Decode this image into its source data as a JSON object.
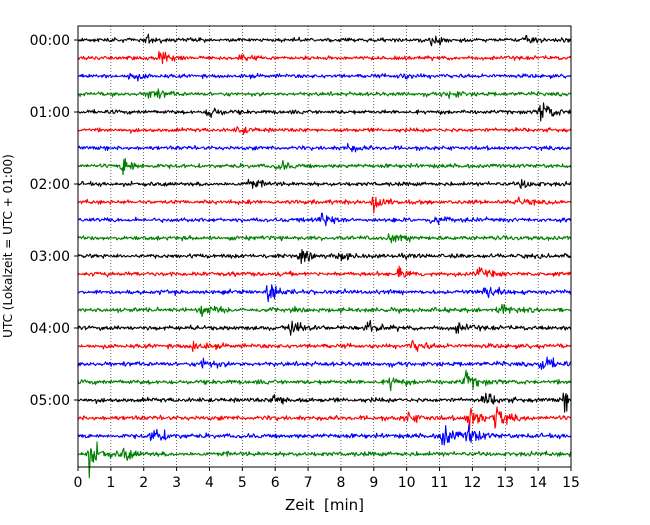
{
  "chart_data": {
    "type": "line",
    "subtype": "helicorder",
    "xlabel": "Zeit  [min]",
    "ylabel": "UTC (Lokalzeit = UTC + 01:00)",
    "xlim": [
      0,
      15
    ],
    "x_ticks": [
      0,
      1,
      2,
      3,
      4,
      5,
      6,
      7,
      8,
      9,
      10,
      11,
      12,
      13,
      14,
      15
    ],
    "x_tick_labels": [
      "0",
      "1",
      "2",
      "3",
      "4",
      "5",
      "6",
      "7",
      "8",
      "9",
      "10",
      "11",
      "12",
      "13",
      "14",
      "15"
    ],
    "y_tick_labels": [
      "00:00",
      "01:00",
      "02:00",
      "03:00",
      "04:00",
      "05:00"
    ],
    "minutes_per_line": 15,
    "lines_per_hour": 4,
    "grid": "vertical-dotted",
    "color_cycle": [
      "#000000",
      "#ff0000",
      "#0000ff",
      "#008000"
    ],
    "traces": [
      {
        "start": "00:00",
        "events": [
          {
            "t": 2.1,
            "amp": 0.35
          },
          {
            "t": 10.8,
            "amp": 0.45
          },
          {
            "t": 13.6,
            "amp": 0.3
          }
        ]
      },
      {
        "start": "00:15",
        "events": [
          {
            "t": 2.5,
            "amp": 0.45
          },
          {
            "t": 4.9,
            "amp": 0.35
          }
        ]
      },
      {
        "start": "00:30",
        "events": [
          {
            "t": 1.6,
            "amp": 0.35
          },
          {
            "t": 9.8,
            "amp": 0.25
          }
        ]
      },
      {
        "start": "00:45",
        "events": [
          {
            "t": 2.2,
            "amp": 0.55
          },
          {
            "t": 11.3,
            "amp": 0.3
          }
        ]
      },
      {
        "start": "01:00",
        "events": [
          {
            "t": 4.0,
            "amp": 0.5
          },
          {
            "t": 14.1,
            "amp": 0.9
          }
        ]
      },
      {
        "start": "01:15",
        "events": [
          {
            "t": 4.9,
            "amp": 0.3
          }
        ]
      },
      {
        "start": "01:30",
        "events": [
          {
            "t": 8.2,
            "amp": 0.3
          }
        ]
      },
      {
        "start": "01:45",
        "events": [
          {
            "t": 1.4,
            "amp": 0.8
          },
          {
            "t": 6.1,
            "amp": 0.35
          }
        ]
      },
      {
        "start": "02:00",
        "events": [
          {
            "t": 5.2,
            "amp": 0.4
          },
          {
            "t": 13.5,
            "amp": 0.35
          }
        ]
      },
      {
        "start": "02:15",
        "events": [
          {
            "t": 8.95,
            "amp": 1.0
          },
          {
            "t": 13.3,
            "amp": 0.35
          }
        ]
      },
      {
        "start": "02:30",
        "events": [
          {
            "t": 7.4,
            "amp": 0.55
          },
          {
            "t": 10.8,
            "amp": 0.35
          }
        ]
      },
      {
        "start": "02:45",
        "events": [
          {
            "t": 9.5,
            "amp": 0.35
          }
        ]
      },
      {
        "start": "03:00",
        "events": [
          {
            "t": 6.8,
            "amp": 0.35
          },
          {
            "t": 8.0,
            "amp": 0.35
          }
        ]
      },
      {
        "start": "03:15",
        "events": [
          {
            "t": 9.8,
            "amp": 0.4
          },
          {
            "t": 12.2,
            "amp": 0.4
          }
        ]
      },
      {
        "start": "03:30",
        "events": [
          {
            "t": 5.8,
            "amp": 0.6
          },
          {
            "t": 12.4,
            "amp": 0.55
          }
        ]
      },
      {
        "start": "03:45",
        "events": [
          {
            "t": 3.8,
            "amp": 0.45
          },
          {
            "t": 12.8,
            "amp": 0.5
          }
        ]
      },
      {
        "start": "04:00",
        "events": [
          {
            "t": 6.5,
            "amp": 0.7
          },
          {
            "t": 8.8,
            "amp": 0.6
          },
          {
            "t": 11.5,
            "amp": 0.4
          }
        ]
      },
      {
        "start": "04:15",
        "events": [
          {
            "t": 3.5,
            "amp": 0.4
          },
          {
            "t": 10.2,
            "amp": 0.4
          }
        ]
      },
      {
        "start": "04:30",
        "events": [
          {
            "t": 3.8,
            "amp": 0.5
          },
          {
            "t": 14.1,
            "amp": 0.7
          }
        ]
      },
      {
        "start": "04:45",
        "events": [
          {
            "t": 11.8,
            "amp": 0.7
          },
          {
            "t": 9.5,
            "amp": 0.45
          }
        ]
      },
      {
        "start": "05:00",
        "events": [
          {
            "t": 6.0,
            "amp": 0.55
          },
          {
            "t": 12.4,
            "amp": 0.55
          },
          {
            "t": 14.8,
            "amp": 0.6
          }
        ]
      },
      {
        "start": "05:15",
        "events": [
          {
            "t": 11.9,
            "amp": 1.0
          },
          {
            "t": 12.7,
            "amp": 0.9
          },
          {
            "t": 10.0,
            "amp": 0.45
          }
        ]
      },
      {
        "start": "05:30",
        "events": [
          {
            "t": 2.3,
            "amp": 0.75
          },
          {
            "t": 11.1,
            "amp": 0.9
          },
          {
            "t": 11.9,
            "amp": 0.7
          }
        ]
      },
      {
        "start": "05:45",
        "events": [
          {
            "t": 0.35,
            "amp": 1.25
          },
          {
            "t": 1.4,
            "amp": 0.45
          }
        ]
      }
    ]
  }
}
